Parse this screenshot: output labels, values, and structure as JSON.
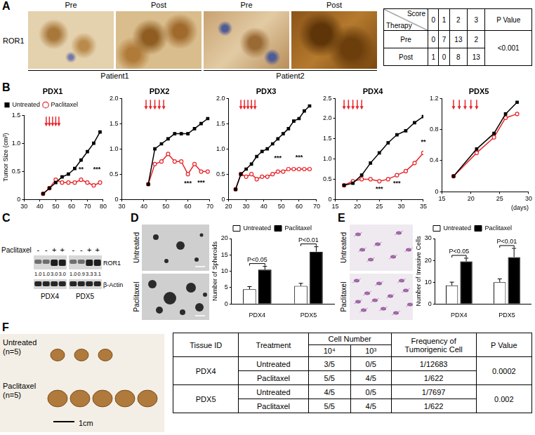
{
  "panel_labels": [
    "A",
    "B",
    "C",
    "D",
    "E",
    "F"
  ],
  "panel_a": {
    "stain": "ROR1",
    "columns": [
      "Pre",
      "Post",
      "Pre",
      "Post"
    ],
    "patients": [
      "Patient1",
      "Patient2"
    ],
    "table": {
      "corner_top": "Score",
      "corner_bottom": "Therapy",
      "scores": [
        0,
        1,
        2,
        3
      ],
      "p_header": "P Value",
      "rows": [
        {
          "therapy": "Pre",
          "counts": [
            0,
            7,
            13,
            2
          ]
        },
        {
          "therapy": "Post",
          "counts": [
            1,
            0,
            8,
            13
          ]
        }
      ],
      "p_value": "<0.001"
    }
  },
  "chart_data": [
    {
      "type": "line",
      "title": "PDX1",
      "y_label": "Tumor Size (cm³)",
      "legend": "top-left",
      "grid": false,
      "x": [
        42,
        46,
        50,
        54,
        58,
        62,
        66,
        70,
        74,
        78
      ],
      "series": [
        {
          "name": "Untreated",
          "color": "#000000",
          "marker": "square",
          "values": [
            0.1,
            0.2,
            0.3,
            0.4,
            0.45,
            0.55,
            0.7,
            0.85,
            1.0,
            1.2
          ]
        },
        {
          "name": "Paclitaxel",
          "color": "#e8262b",
          "marker": "circle",
          "values": [
            0.1,
            0.2,
            0.35,
            0.3,
            0.3,
            0.3,
            0.35,
            0.3,
            0.25,
            0.3
          ]
        }
      ],
      "xlim": [
        30,
        80
      ],
      "xticks": [
        30,
        40,
        50,
        60,
        70,
        80
      ],
      "ylim": [
        0,
        1.5
      ],
      "yticks": [
        0,
        0.5,
        {
          "value": 1,
          "label": "1.0"
        },
        1.5
      ],
      "treatment_days": [
        44,
        46,
        48,
        50,
        52
      ],
      "annotations": [
        {
          "x": 66,
          "y": 0.5,
          "text": "**"
        },
        {
          "x": 76,
          "y": 0.5,
          "text": "***"
        }
      ]
    },
    {
      "type": "line",
      "title": "PDX2",
      "grid": false,
      "x": [
        42,
        45,
        48,
        51,
        54,
        57,
        60,
        63,
        66,
        69
      ],
      "series": [
        {
          "name": "Untreated",
          "color": "#000000",
          "marker": "square",
          "values": [
            0.3,
            1.0,
            1.1,
            1.2,
            1.3,
            1.3,
            1.3,
            1.4,
            1.5,
            1.6
          ]
        },
        {
          "name": "Paclitaxel",
          "color": "#e8262b",
          "marker": "circle",
          "values": [
            0.3,
            0.7,
            0.75,
            0.9,
            0.75,
            0.75,
            0.5,
            0.7,
            0.55,
            0.55
          ]
        }
      ],
      "xlim": [
        30,
        70
      ],
      "xticks": [
        30,
        40,
        50,
        60,
        70
      ],
      "ylim": [
        0,
        2
      ],
      "yticks": [
        0,
        0.5,
        {
          "value": 1,
          "label": "1.0"
        },
        1.5,
        {
          "value": 2,
          "label": "2.0"
        }
      ],
      "treatment_days": [
        41,
        43,
        45,
        47,
        49
      ],
      "annotations": [
        {
          "x": 60,
          "y": 0.28,
          "text": "***"
        },
        {
          "x": 66,
          "y": 0.3,
          "text": "***"
        }
      ]
    },
    {
      "type": "line",
      "title": "PDX3",
      "grid": false,
      "x": [
        24,
        27,
        30,
        33,
        36,
        39,
        42,
        45,
        48,
        51,
        54,
        57,
        60,
        63,
        66
      ],
      "series": [
        {
          "name": "Untreated",
          "color": "#000000",
          "marker": "square",
          "values": [
            0.2,
            0.5,
            0.6,
            0.7,
            0.85,
            0.95,
            1.0,
            1.1,
            1.2,
            1.3,
            1.4,
            1.55,
            1.6,
            1.75,
            1.85
          ]
        },
        {
          "name": "Paclitaxel",
          "color": "#e8262b",
          "marker": "circle",
          "values": [
            0.2,
            0.5,
            0.45,
            0.5,
            0.4,
            0.45,
            0.45,
            0.5,
            0.55,
            0.55,
            0.6,
            0.6,
            0.6,
            0.6,
            0.6
          ]
        }
      ],
      "xlim": [
        20,
        70
      ],
      "xticks": [
        20,
        30,
        40,
        50,
        60,
        70
      ],
      "ylim": [
        0,
        2
      ],
      "yticks": [
        0,
        0.5,
        {
          "value": 1,
          "label": "1.0"
        },
        1.5,
        {
          "value": 2,
          "label": "2.0"
        }
      ],
      "treatment_days": [
        27,
        29,
        31,
        33,
        35
      ],
      "annotations": [
        {
          "x": 48,
          "y": 0.78,
          "text": "***"
        },
        {
          "x": 60,
          "y": 0.8,
          "text": "***"
        }
      ]
    },
    {
      "type": "line",
      "title": "PDX4",
      "grid": false,
      "x": [
        17,
        19,
        21,
        23,
        25,
        27,
        29,
        31,
        33,
        35
      ],
      "series": [
        {
          "name": "Untreated",
          "color": "#000000",
          "marker": "square",
          "values": [
            0.35,
            0.4,
            0.6,
            0.9,
            1.15,
            1.4,
            1.6,
            1.7,
            1.9,
            2.05
          ]
        },
        {
          "name": "Paclitaxel",
          "color": "#e8262b",
          "marker": "circle",
          "values": [
            0.35,
            0.45,
            0.5,
            0.5,
            0.45,
            0.5,
            0.6,
            0.7,
            0.9,
            1.15
          ]
        }
      ],
      "xlim": [
        15,
        35
      ],
      "xticks": [
        15,
        20,
        25,
        30,
        35
      ],
      "ylim": [
        0,
        2.5
      ],
      "yticks": [
        0,
        0.5,
        {
          "value": 1,
          "label": "1.0"
        },
        1.5,
        {
          "value": 2,
          "label": "2.0"
        },
        2.5
      ],
      "treatment_days": [
        17,
        18,
        19,
        20,
        21
      ],
      "annotations": [
        {
          "x": 25,
          "y": 0.22,
          "text": "***"
        },
        {
          "x": 29,
          "y": 0.35,
          "text": "***"
        },
        {
          "x": 35,
          "y": 1.38,
          "text": "**"
        }
      ]
    },
    {
      "type": "line",
      "title": "PDX5",
      "x_label": "(days)",
      "grid": false,
      "x": [
        17,
        21,
        24,
        26,
        28
      ],
      "series": [
        {
          "name": "Untreated",
          "color": "#000000",
          "marker": "square",
          "values": [
            0.2,
            0.55,
            0.75,
            1.0,
            1.15
          ]
        },
        {
          "name": "Paclitaxel",
          "color": "#e8262b",
          "marker": "circle",
          "values": [
            0.2,
            0.5,
            0.7,
            0.95,
            1.0
          ]
        }
      ],
      "xlim": [
        15,
        30
      ],
      "xticks": [
        15,
        20,
        25,
        30
      ],
      "ylim": [
        0,
        1.2
      ],
      "yticks": [
        0,
        0.4,
        0.8,
        1.2
      ],
      "treatment_days": [
        17,
        18,
        19,
        20,
        21
      ],
      "annotations": []
    },
    {
      "type": "bar",
      "y_label": "Number of Spheroids",
      "legend": "top",
      "grid": false,
      "categories": [
        "PDX4",
        "PDX5"
      ],
      "series": [
        {
          "name": "Untreated",
          "color": "#ffffff",
          "values": [
            4.5,
            5.5
          ],
          "errors": [
            0.8,
            0.8
          ]
        },
        {
          "name": "Paclitaxel",
          "color": "#000000",
          "values": [
            10.5,
            16
          ],
          "errors": [
            1,
            1.5
          ]
        }
      ],
      "ylim": [
        0,
        20
      ],
      "yticks": [
        0,
        5,
        10,
        15,
        20
      ],
      "p_values": [
        "P<0.05",
        "P<0.01"
      ]
    },
    {
      "type": "bar",
      "y_label": "Number of Invasive Cells",
      "legend": "top",
      "grid": false,
      "categories": [
        "PDX4",
        "PDX5"
      ],
      "series": [
        {
          "name": "Untreated",
          "color": "#ffffff",
          "values": [
            8.5,
            10
          ],
          "errors": [
            1.5,
            1.5
          ]
        },
        {
          "name": "Paclitaxel",
          "color": "#000000",
          "values": [
            19.5,
            21.5
          ],
          "errors": [
            1.5,
            4
          ]
        }
      ],
      "ylim": [
        0,
        30
      ],
      "yticks": [
        0,
        10,
        20,
        30
      ],
      "p_values": [
        "P<0.05",
        "P<0.01"
      ]
    }
  ],
  "panel_c": {
    "treatment_label": "Paclitaxel",
    "treatment_marks": [
      "-",
      "-",
      "+",
      "+"
    ],
    "bands": [
      "ROR1",
      "β-Actin"
    ],
    "blots": [
      {
        "name": "PDX4",
        "ror1_values": [
          "1.0",
          "1.0",
          "3.0",
          "3.0"
        ]
      },
      {
        "name": "PDX5",
        "ror1_values": [
          "1.0",
          "0.9",
          "3.3",
          "3.1"
        ]
      }
    ]
  },
  "panel_d": {
    "image_labels": [
      "Untreated",
      "Paclitaxel"
    ]
  },
  "panel_e": {
    "image_labels": [
      "Untreated",
      "Paclitaxel"
    ]
  },
  "panel_f": {
    "images": [
      {
        "label": "Untreated (n=5)",
        "tumors": 3
      },
      {
        "label": "Paclitaxel (n=5)",
        "tumors": 5
      }
    ],
    "scale_bar": "1cm",
    "table": {
      "headers": {
        "tissue": "Tissue ID",
        "treatment": "Treatment",
        "cell_number": "Cell Number",
        "cell_counts": [
          "10⁴",
          "10³"
        ],
        "frequency": "Frequency of Tumorigenic Cell",
        "p": "P Value"
      },
      "groups": [
        {
          "tissue": "PDX4",
          "p_value": "0.0002",
          "rows": [
            {
              "treatment": "Untreated",
              "counts": [
                "3/5",
                "0/5"
              ],
              "frequency": "1/12683"
            },
            {
              "treatment": "Paclitaxel",
              "counts": [
                "5/5",
                "4/5"
              ],
              "frequency": "1/622"
            }
          ]
        },
        {
          "tissue": "PDX5",
          "p_value": "0.002",
          "rows": [
            {
              "treatment": "Untreated",
              "counts": [
                "4/5",
                "0/5"
              ],
              "frequency": "1/7697"
            },
            {
              "treatment": "Paclitaxel",
              "counts": [
                "5/5",
                "4/5"
              ],
              "frequency": "1/622"
            }
          ]
        }
      ]
    }
  }
}
